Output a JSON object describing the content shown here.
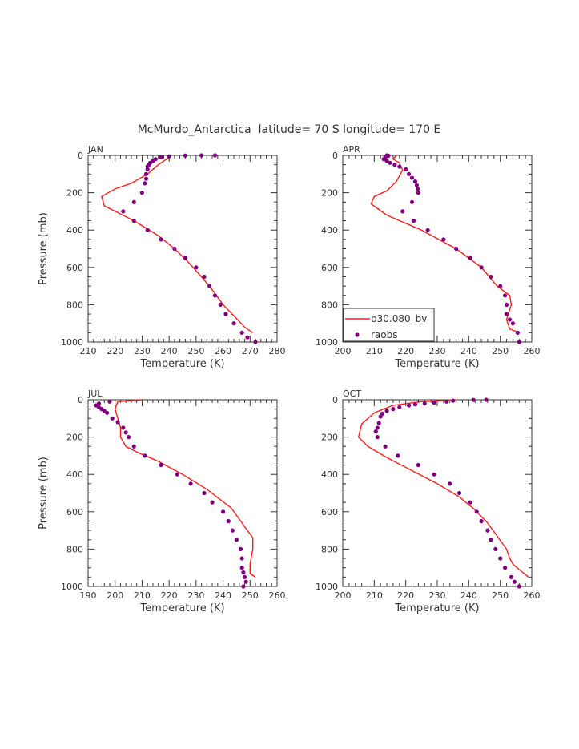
{
  "title": "McMurdo_Antarctica  latitude= 70 S longitude= 170 E",
  "legend": {
    "model_label": "b30.080_bv",
    "obs_label": "raobs"
  },
  "colors": {
    "model": "#ff1a1a",
    "obs": "#800080",
    "axes": "#333333"
  },
  "chart_data": [
    {
      "type": "line",
      "panel": "JAN",
      "xlabel": "Temperature (K)",
      "ylabel": "Pressure (mb)",
      "xlim": [
        210,
        280
      ],
      "ylim": [
        1000,
        0
      ],
      "xticks": [
        210,
        220,
        230,
        240,
        250,
        260,
        270,
        280
      ],
      "yticks": [
        0,
        200,
        400,
        600,
        800,
        1000
      ],
      "series": [
        {
          "name": "b30.080_bv",
          "kind": "line",
          "x": [
            240,
            239,
            236,
            232,
            226,
            220,
            215,
            216,
            227,
            236,
            242,
            247,
            252,
            256,
            260,
            264,
            268,
            271
          ],
          "y": [
            10,
            20,
            50,
            100,
            150,
            180,
            220,
            270,
            350,
            430,
            500,
            570,
            650,
            720,
            800,
            860,
            920,
            950
          ]
        },
        {
          "name": "raobs",
          "kind": "scatter",
          "x": [
            257,
            252,
            246,
            240,
            237,
            235,
            234,
            233,
            232.5,
            232,
            232,
            231.5,
            231.5,
            231,
            230,
            227,
            223,
            227,
            232,
            237,
            242,
            246,
            250,
            253,
            255,
            257,
            259,
            261,
            264,
            267,
            269,
            272
          ],
          "y": [
            0,
            0,
            1,
            5,
            10,
            20,
            30,
            40,
            50,
            60,
            75,
            100,
            125,
            150,
            200,
            250,
            300,
            350,
            400,
            450,
            500,
            550,
            600,
            650,
            700,
            750,
            800,
            850,
            900,
            950,
            975,
            1000
          ]
        }
      ]
    },
    {
      "type": "line",
      "panel": "APR",
      "xlabel": "Temperature (K)",
      "ylabel": "",
      "xlim": [
        200,
        260
      ],
      "ylim": [
        1000,
        0
      ],
      "xticks": [
        200,
        210,
        220,
        230,
        240,
        250,
        260
      ],
      "yticks": [
        0,
        200,
        400,
        600,
        800,
        1000
      ],
      "series": [
        {
          "name": "b30.080_bv",
          "kind": "line",
          "x": [
            217,
            216,
            218,
            219,
            217,
            214,
            210,
            209,
            214,
            225,
            236,
            244,
            249,
            253,
            253.5,
            252,
            253,
            256
          ],
          "y": [
            0,
            20,
            40,
            80,
            140,
            190,
            220,
            260,
            320,
            400,
            500,
            600,
            700,
            750,
            800,
            880,
            930,
            950
          ]
        },
        {
          "name": "raobs",
          "kind": "scatter",
          "x": [
            214,
            214.5,
            213.5,
            213,
            214,
            215,
            216.5,
            218,
            220,
            221,
            222,
            223,
            223.5,
            223.8,
            224,
            219,
            222,
            222.5,
            227,
            232,
            236,
            240.5,
            244,
            247,
            250,
            251.5,
            252,
            252,
            253,
            254,
            255.5,
            256
          ],
          "y": [
            0,
            2,
            10,
            20,
            30,
            40,
            50,
            60,
            75,
            100,
            120,
            140,
            160,
            180,
            200,
            300,
            250,
            350,
            400,
            450,
            500,
            550,
            600,
            650,
            700,
            750,
            800,
            850,
            880,
            900,
            950,
            1000
          ]
        }
      ]
    },
    {
      "type": "line",
      "panel": "JUL",
      "xlabel": "Temperature (K)",
      "ylabel": "Pressure (mb)",
      "xlim": [
        190,
        260
      ],
      "ylim": [
        1000,
        0
      ],
      "xticks": [
        190,
        200,
        210,
        220,
        230,
        240,
        250,
        260
      ],
      "yticks": [
        0,
        200,
        400,
        600,
        800,
        1000
      ],
      "series": [
        {
          "name": "b30.080_bv",
          "kind": "line",
          "x": [
            210,
            201,
            200,
            201,
            202,
            202,
            204,
            208,
            216,
            225,
            234,
            243,
            248,
            251,
            251,
            250,
            250,
            252
          ],
          "y": [
            0,
            10,
            50,
            100,
            150,
            200,
            250,
            280,
            330,
            400,
            480,
            580,
            680,
            740,
            800,
            880,
            930,
            950
          ]
        },
        {
          "name": "raobs",
          "kind": "scatter",
          "x": [
            198,
            194,
            193,
            194,
            195,
            196,
            197,
            199,
            201,
            203,
            204,
            205,
            207,
            211,
            217,
            223,
            228,
            233,
            236,
            240,
            242,
            243.5,
            245,
            246.5,
            247,
            247,
            247.5,
            248,
            248.5,
            247.5
          ],
          "y": [
            10,
            20,
            30,
            40,
            50,
            60,
            70,
            100,
            120,
            150,
            175,
            200,
            250,
            300,
            350,
            400,
            450,
            500,
            550,
            600,
            650,
            700,
            750,
            800,
            850,
            900,
            925,
            950,
            975,
            1000
          ]
        }
      ]
    },
    {
      "type": "line",
      "panel": "OCT",
      "xlabel": "Temperature (K)",
      "ylabel": "",
      "xlim": [
        200,
        260
      ],
      "ylim": [
        1000,
        0
      ],
      "xticks": [
        200,
        210,
        220,
        230,
        240,
        250,
        260
      ],
      "yticks": [
        0,
        200,
        400,
        600,
        800,
        1000
      ],
      "series": [
        {
          "name": "b30.080_bv",
          "kind": "line",
          "x": [
            236,
            225,
            216,
            210,
            206,
            205,
            208,
            214,
            222,
            230,
            237,
            242,
            246,
            249,
            252,
            253,
            254,
            256,
            259
          ],
          "y": [
            0,
            10,
            30,
            70,
            130,
            200,
            250,
            310,
            380,
            450,
            520,
            590,
            660,
            730,
            800,
            850,
            880,
            910,
            950
          ]
        },
        {
          "name": "raobs",
          "kind": "scatter",
          "x": [
            245.5,
            241.5,
            235,
            233,
            229,
            226,
            223,
            221,
            218,
            216,
            214,
            212.5,
            212,
            211.5,
            211,
            210.5,
            211,
            213.5,
            217.5,
            224,
            229,
            234,
            237,
            240.5,
            242.5,
            244,
            246,
            247,
            248.5,
            250,
            251.5,
            253.5,
            254.5,
            256
          ],
          "y": [
            0,
            1,
            5,
            10,
            15,
            20,
            25,
            30,
            40,
            50,
            60,
            75,
            90,
            125,
            150,
            170,
            200,
            250,
            300,
            350,
            400,
            450,
            500,
            550,
            600,
            650,
            700,
            750,
            800,
            850,
            900,
            950,
            975,
            1000
          ]
        }
      ]
    }
  ]
}
